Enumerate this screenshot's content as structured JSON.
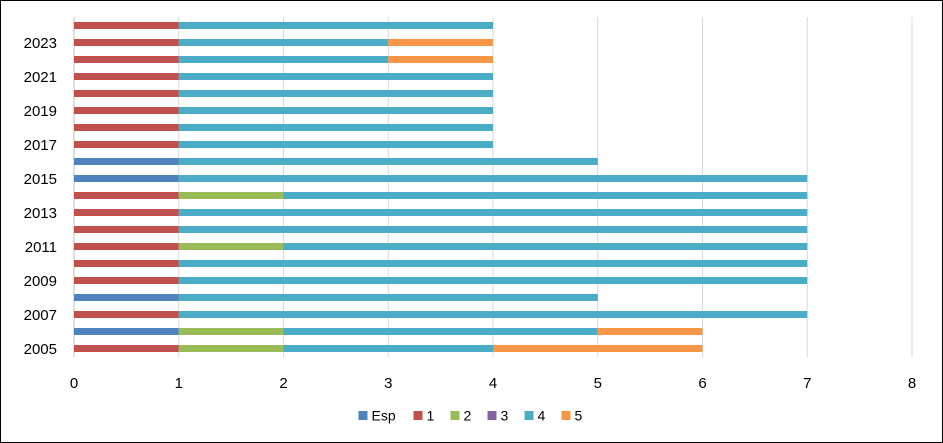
{
  "chart_data": {
    "type": "bar",
    "orientation": "horizontal",
    "stacked": true,
    "title": "",
    "xlabel": "",
    "ylabel": "",
    "xlim": [
      0,
      8
    ],
    "xticks": [
      0,
      1,
      2,
      3,
      4,
      5,
      6,
      7,
      8
    ],
    "grid": "vertical",
    "legend_position": "bottom",
    "categories": [
      "2005",
      "2006",
      "2007",
      "2008",
      "2009",
      "2010",
      "2011",
      "2012",
      "2013",
      "2014",
      "2015",
      "2016",
      "2017",
      "2018",
      "2019",
      "2020",
      "2021",
      "2022",
      "2023",
      "2024"
    ],
    "category_tick_labels": [
      "2005",
      "2007",
      "2009",
      "2011",
      "2013",
      "2015",
      "2017",
      "2019",
      "2021",
      "2023"
    ],
    "series": [
      {
        "name": "Esp",
        "color": "#4F81BD",
        "values": [
          0,
          1,
          0,
          1,
          0,
          0,
          0,
          0,
          0,
          0,
          1,
          1,
          0,
          0,
          0,
          0,
          0,
          0,
          0,
          0
        ]
      },
      {
        "name": "1",
        "color": "#C0504D",
        "values": [
          1,
          0,
          1,
          0,
          1,
          1,
          1,
          1,
          1,
          1,
          0,
          0,
          1,
          1,
          1,
          1,
          1,
          1,
          1,
          1
        ]
      },
      {
        "name": "2",
        "color": "#9BBB59",
        "values": [
          1,
          1,
          0,
          0,
          0,
          0,
          1,
          0,
          0,
          1,
          0,
          0,
          0,
          0,
          0,
          0,
          0,
          0,
          0,
          0
        ]
      },
      {
        "name": "3",
        "color": "#8064A2",
        "values": [
          0,
          0,
          0,
          0,
          0,
          0,
          0,
          0,
          0,
          0,
          0,
          0,
          0,
          0,
          0,
          0,
          0,
          0,
          0,
          0
        ]
      },
      {
        "name": "4",
        "color": "#4BACC6",
        "values": [
          2,
          3,
          6,
          4,
          6,
          6,
          5,
          6,
          6,
          5,
          6,
          4,
          3,
          3,
          3,
          3,
          3,
          2,
          2,
          3
        ]
      },
      {
        "name": "5",
        "color": "#F79646",
        "values": [
          2,
          1,
          0,
          0,
          0,
          0,
          0,
          0,
          0,
          0,
          0,
          0,
          0,
          0,
          0,
          0,
          0,
          1,
          1,
          0
        ]
      }
    ]
  }
}
